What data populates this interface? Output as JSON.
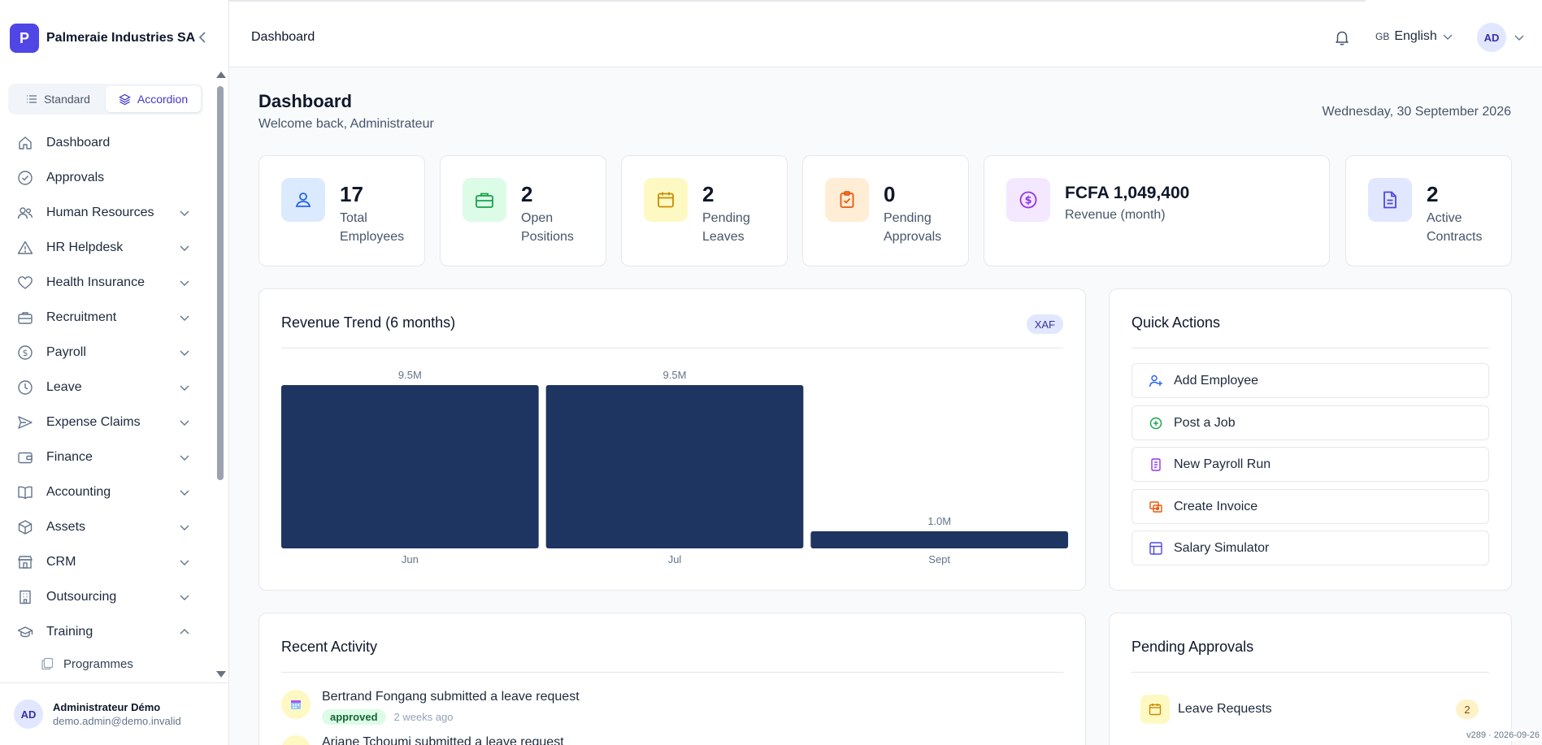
{
  "brand": {
    "logo": "P",
    "name": "Palmeraie Industries SA"
  },
  "sidebar": {
    "modes": [
      {
        "label": "Standard",
        "active": false
      },
      {
        "label": "Accordion",
        "active": true
      }
    ],
    "items": [
      {
        "label": "Dashboard",
        "icon": "home-icon",
        "chevron": false
      },
      {
        "label": "Approvals",
        "icon": "check-circle-icon",
        "chevron": false
      },
      {
        "label": "Human Resources",
        "icon": "users-icon",
        "chevron": true
      },
      {
        "label": "HR Helpdesk",
        "icon": "alert-triangle-icon",
        "chevron": true
      },
      {
        "label": "Health Insurance",
        "icon": "heart-icon",
        "chevron": true
      },
      {
        "label": "Recruitment",
        "icon": "briefcase-icon",
        "chevron": true
      },
      {
        "label": "Payroll",
        "icon": "dollar-circle-icon",
        "chevron": true
      },
      {
        "label": "Leave",
        "icon": "clock-icon",
        "chevron": true
      },
      {
        "label": "Expense Claims",
        "icon": "send-icon",
        "chevron": true
      },
      {
        "label": "Finance",
        "icon": "wallet-icon",
        "chevron": true
      },
      {
        "label": "Accounting",
        "icon": "book-open-icon",
        "chevron": true
      },
      {
        "label": "Assets",
        "icon": "box-icon",
        "chevron": true
      },
      {
        "label": "CRM",
        "icon": "store-icon",
        "chevron": true
      },
      {
        "label": "Outsourcing",
        "icon": "building-icon",
        "chevron": true
      },
      {
        "label": "Training",
        "icon": "graduation-cap-icon",
        "chevron": true,
        "expanded": true
      }
    ],
    "sub_items": [
      {
        "label": "Programmes",
        "icon": "copy-icon"
      }
    ]
  },
  "user": {
    "initials": "AD",
    "name": "Administrateur Démo",
    "email": "demo.admin@demo.invalid"
  },
  "topbar": {
    "title": "Dashboard",
    "lang_code": "GB",
    "lang": "English",
    "initials": "AD"
  },
  "page": {
    "title": "Dashboard",
    "subtitle": "Welcome back, Administrateur",
    "date": "Wednesday, 30 September 2026"
  },
  "stats": [
    {
      "value": "17",
      "label": "Total Employees",
      "icon": "user-icon",
      "bg": "#dbeafe",
      "fg": "#2563eb"
    },
    {
      "value": "2",
      "label": "Open Positions",
      "icon": "briefcase-icon",
      "bg": "#dcfce7",
      "fg": "#16a34a"
    },
    {
      "value": "2",
      "label": "Pending Leaves",
      "icon": "calendar-icon",
      "bg": "#fef9c3",
      "fg": "#ca8a04"
    },
    {
      "value": "0",
      "label": "Pending Approvals",
      "icon": "clipboard-check-icon",
      "bg": "#ffedd5",
      "fg": "#ea580c"
    },
    {
      "value": "FCFA 1,049,400",
      "label": "Revenue (month)",
      "icon": "dollar-circle-icon",
      "bg": "#f3e8ff",
      "fg": "#9333ea"
    },
    {
      "value": "2",
      "label": "Active Contracts",
      "icon": "file-text-icon",
      "bg": "#e0e7ff",
      "fg": "#4f46e5"
    }
  ],
  "revenue": {
    "title": "Revenue Trend (6 months)",
    "currency_badge": "XAF"
  },
  "chart_data": {
    "type": "bar",
    "categories": [
      "Jun",
      "Jul",
      "Sept"
    ],
    "values": [
      9.5,
      9.5,
      1.0
    ],
    "data_labels": [
      "9.5M",
      "9.5M",
      "1.0M"
    ],
    "title": "Revenue Trend (6 months)",
    "xlabel": "",
    "ylabel": "",
    "ylim": [
      0,
      9.5
    ],
    "bar_color": "#1e3461",
    "grid": false
  },
  "quick_actions": {
    "title": "Quick Actions",
    "items": [
      {
        "label": "Add Employee",
        "icon": "user-plus-icon",
        "color": "#2563eb"
      },
      {
        "label": "Post a Job",
        "icon": "plus-circle-icon",
        "color": "#16a34a"
      },
      {
        "label": "New Payroll Run",
        "icon": "receipt-icon",
        "color": "#9333ea"
      },
      {
        "label": "Create Invoice",
        "icon": "invoice-icon",
        "color": "#ea580c"
      },
      {
        "label": "Salary Simulator",
        "icon": "table-icon",
        "color": "#4f46e5"
      }
    ]
  },
  "activity": {
    "title": "Recent Activity",
    "items": [
      {
        "text": "Bertrand Fongang submitted a leave request",
        "status": "approved",
        "time": "2 weeks ago"
      },
      {
        "text": "Ariane Tchoumi submitted a leave request"
      }
    ]
  },
  "pending_approvals": {
    "title": "Pending Approvals",
    "items": [
      {
        "label": "Leave Requests",
        "count": "2"
      }
    ]
  },
  "version": "v289 · 2026-09-26"
}
